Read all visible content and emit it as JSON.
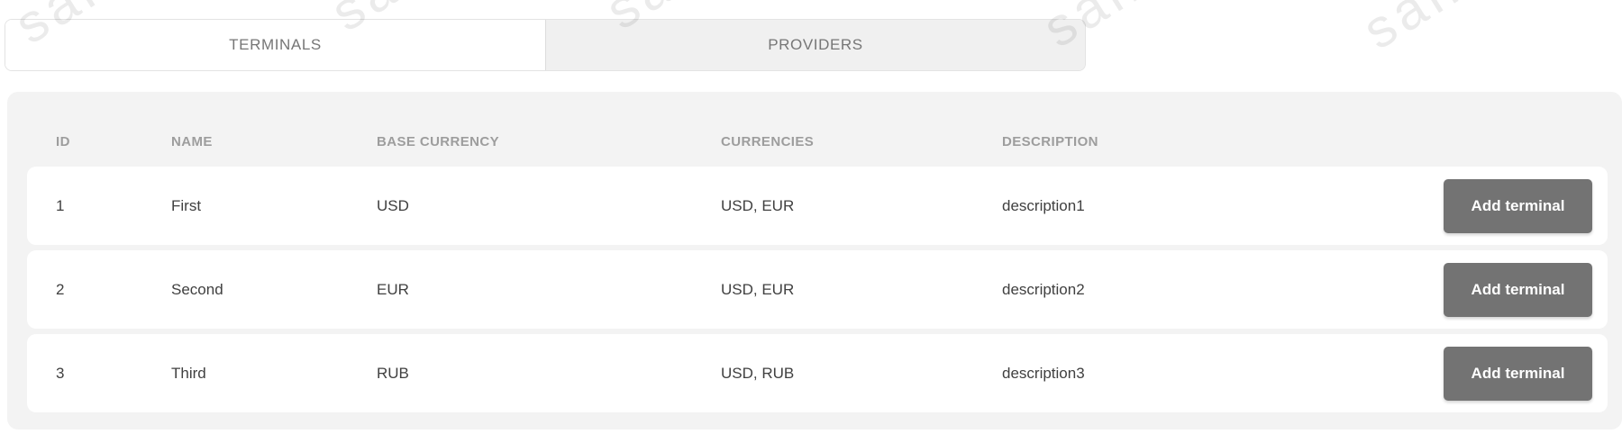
{
  "watermark": {
    "text": "sandbox"
  },
  "tabs": [
    {
      "label": "TERMINALS",
      "active": true
    },
    {
      "label": "PROVIDERS",
      "active": false
    }
  ],
  "table": {
    "columns": [
      "ID",
      "NAME",
      "BASE CURRENCY",
      "CURRENCIES",
      "DESCRIPTION"
    ],
    "rows": [
      {
        "id": "1",
        "name": "First",
        "base_currency": "USD",
        "currencies": "USD, EUR",
        "description": "description1",
        "action_label": "Add terminal"
      },
      {
        "id": "2",
        "name": "Second",
        "base_currency": "EUR",
        "currencies": "USD, EUR",
        "description": "description2",
        "action_label": "Add terminal"
      },
      {
        "id": "3",
        "name": "Third",
        "base_currency": "RUB",
        "currencies": "USD, RUB",
        "description": "description3",
        "action_label": "Add terminal"
      }
    ]
  },
  "colors": {
    "panel_bg": "#f3f3f3",
    "card_bg": "#ffffff",
    "button_bg": "#737373",
    "button_text": "#ffffff",
    "inactive_tab_bg": "#f0f0f0",
    "tab_text": "#767676",
    "header_text": "#9d9d9d",
    "cell_text": "#404040"
  }
}
